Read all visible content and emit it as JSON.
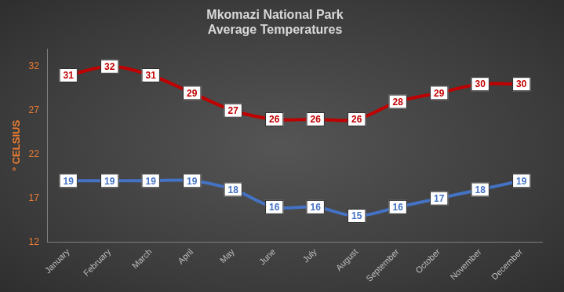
{
  "chart_data": {
    "type": "line",
    "title": "Mkomazi National Park\nAverage Temperatures",
    "y_label": "° CELSIUS",
    "categories": [
      "January",
      "February",
      "March",
      "April",
      "May",
      "June",
      "July",
      "August",
      "September",
      "October",
      "November",
      "December"
    ],
    "series": [
      {
        "color": "#c00000",
        "values": [
          31,
          32,
          31,
          29,
          27,
          26,
          26,
          26,
          28,
          29,
          30,
          30
        ]
      },
      {
        "color": "#4472c4",
        "values": [
          19,
          19,
          19,
          19,
          18,
          16,
          16,
          15,
          16,
          17,
          18,
          19
        ]
      }
    ],
    "ylim": [
      12,
      34
    ],
    "yticks": [
      12,
      17,
      22,
      27,
      32
    ],
    "grid": false,
    "data_labels": true
  }
}
